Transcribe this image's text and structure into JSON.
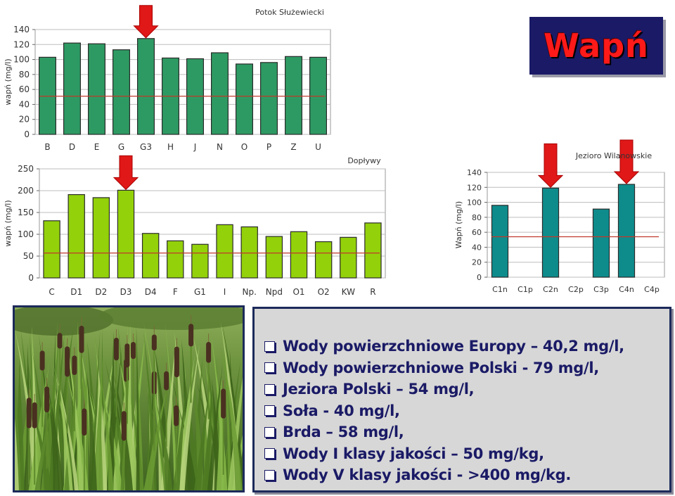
{
  "title": "Wapń",
  "chart_data": [
    {
      "type": "bar",
      "title": "Potok Służewiecki",
      "ylabel": "wapń (mg/l)",
      "categories": [
        "B",
        "D",
        "E",
        "G",
        "G3",
        "H",
        "J",
        "N",
        "O",
        "P",
        "Z",
        "U"
      ],
      "values": [
        103,
        122,
        121,
        113,
        128,
        102,
        101,
        109,
        94,
        96,
        104,
        103
      ],
      "ylim": [
        0,
        140
      ],
      "yticks": [
        0,
        20,
        40,
        60,
        80,
        100,
        120,
        140
      ],
      "reference_value": 51,
      "arrow_categories": [
        "G3"
      ],
      "bar_color": "#2e9a63",
      "grid": true
    },
    {
      "type": "bar",
      "title": "Dopływy",
      "ylabel": "wapń (mg/l)",
      "categories": [
        "C",
        "D1",
        "D2",
        "D3",
        "D4",
        "F",
        "G1",
        "I",
        "Np.",
        "Npd",
        "O1",
        "O2",
        "KW",
        "R"
      ],
      "values": [
        131,
        191,
        184,
        201,
        102,
        85,
        77,
        122,
        117,
        95,
        106,
        83,
        93,
        126
      ],
      "ylim": [
        0,
        250
      ],
      "yticks": [
        0,
        50,
        100,
        150,
        200,
        250
      ],
      "reference_value": 57,
      "arrow_categories": [
        "D3"
      ],
      "bar_color": "#93d10a",
      "grid": true
    },
    {
      "type": "bar",
      "title": "Jezioro Wilanowskie",
      "ylabel": "Wapń (mg/l)",
      "categories": [
        "C1n",
        "C1p",
        "C2n",
        "C2p",
        "C3p",
        "C4n",
        "C4p"
      ],
      "values": [
        96,
        null,
        119,
        null,
        91,
        124,
        null
      ],
      "ylim": [
        0,
        140
      ],
      "yticks": [
        0,
        20,
        40,
        60,
        80,
        100,
        120,
        140
      ],
      "reference_value": 54,
      "arrow_categories": [
        "C2n",
        "C4n"
      ],
      "bar_color": "#0e8c8c",
      "grid": true
    }
  ],
  "info_items": [
    "Wody powierzchniowe Europy – 40,2 mg/l,",
    "Wody powierzchniowe Polski - 79 mg/l,",
    "Jeziora Polski – 54 mg/l,",
    "Soła - 40 mg/l,",
    "Brda – 58 mg/l,",
    "Wody I klasy jakości – 50 mg/kg,",
    "Wody V klasy jakości - >400 mg/kg."
  ],
  "colors": {
    "title_bg": "#1a1a66",
    "title_text": "#ff1a1a",
    "info_text": "#1a1a66",
    "arrow": "#e01818",
    "reference_line": "#c0392b"
  },
  "photo": {
    "icon": "cattail-reeds-photo"
  }
}
